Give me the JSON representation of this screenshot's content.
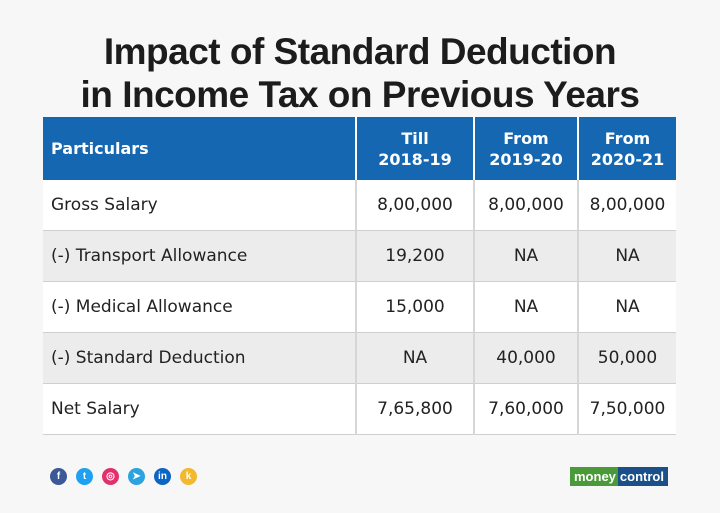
{
  "title_line1": "Impact of Standard Deduction",
  "title_line2": "in Income Tax on Previous Years",
  "table": {
    "headers": [
      "Particulars",
      "Till\n2018-19",
      "From\n2019-20",
      "From\n2020-21"
    ],
    "header_lines": [
      [
        "Particulars"
      ],
      [
        "Till",
        "2018-19"
      ],
      [
        "From",
        "2019-20"
      ],
      [
        "From",
        "2020-21"
      ]
    ],
    "rows": [
      [
        "Gross Salary",
        "8,00,000",
        "8,00,000",
        "8,00,000"
      ],
      [
        "(-) Transport Allowance",
        "19,200",
        "NA",
        "NA"
      ],
      [
        "(-) Medical Allowance",
        "15,000",
        "NA",
        "NA"
      ],
      [
        "(-) Standard Deduction",
        "NA",
        "40,000",
        "50,000"
      ],
      [
        "Net Salary",
        "7,65,800",
        "7,60,000",
        "7,50,000"
      ]
    ]
  },
  "social_icons": [
    {
      "name": "facebook-icon",
      "glyph": "f",
      "color": "#3b5998"
    },
    {
      "name": "twitter-icon",
      "glyph": "t",
      "color": "#1da1f2"
    },
    {
      "name": "instagram-icon",
      "glyph": "◎",
      "color": "#e1306c"
    },
    {
      "name": "telegram-icon",
      "glyph": "➤",
      "color": "#2aa3df"
    },
    {
      "name": "linkedin-icon",
      "glyph": "in",
      "color": "#0a66c2"
    },
    {
      "name": "koo-icon",
      "glyph": "k",
      "color": "#f2b92c"
    }
  ],
  "logo": {
    "part1": "money",
    "part2": "control"
  },
  "colors": {
    "header": "#1467b0",
    "row_alt": "#ececec"
  }
}
